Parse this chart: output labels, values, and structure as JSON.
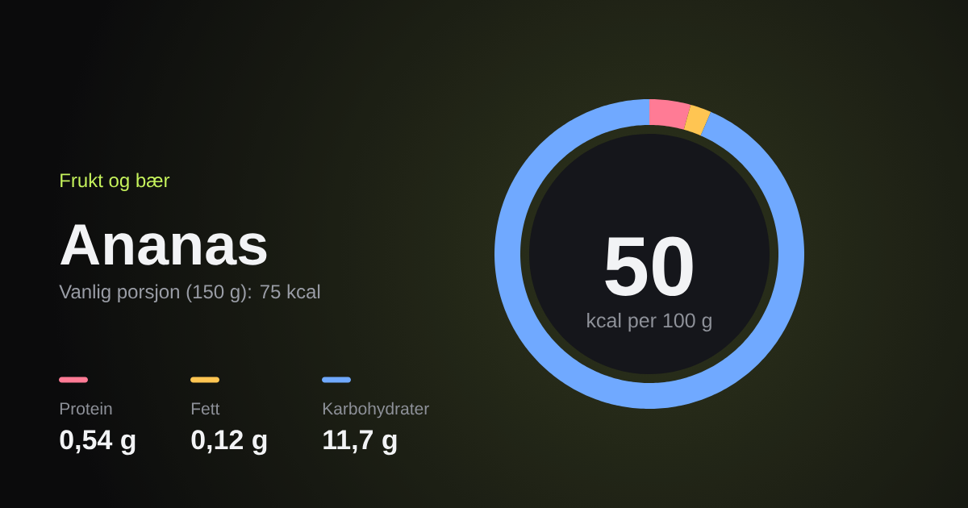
{
  "chart_data": {
    "type": "donut",
    "title": "Ananas",
    "subtitle": "Vanlig porsjon (150 g): 75 kcal",
    "categories": [
      "Protein",
      "Fett",
      "Karbohydrater"
    ],
    "values": [
      4.3,
      2.2,
      93.5
    ],
    "colors": [
      "#ff7b95",
      "#ffc552",
      "#70a9ff"
    ],
    "legend": "left",
    "annotations": [
      "Frukt og bær",
      "50",
      "kcal per 100 g",
      "0,54 g",
      "0,12 g",
      "11,7 g"
    ]
  }
}
